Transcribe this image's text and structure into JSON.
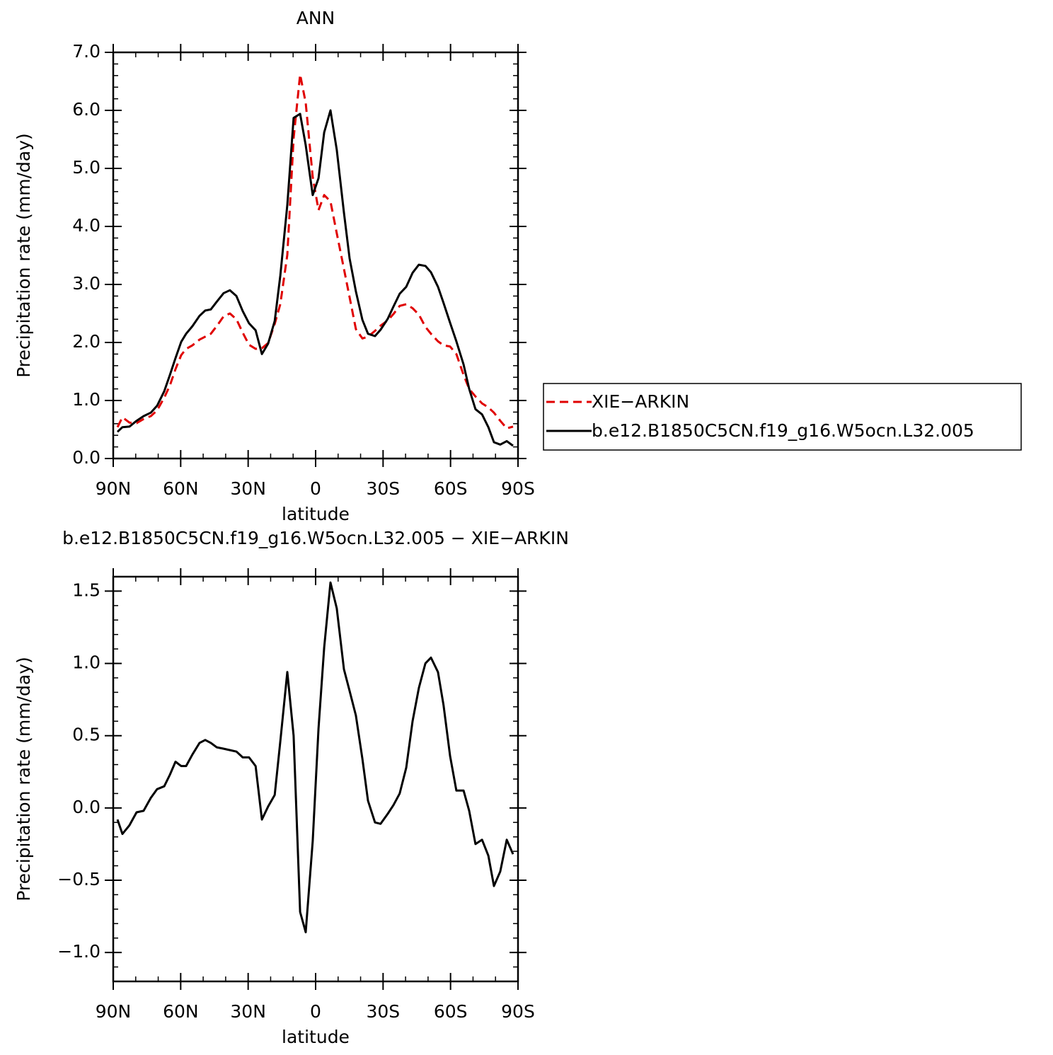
{
  "chart_data": [
    {
      "type": "line",
      "title": "ANN",
      "xlabel": "latitude",
      "ylabel": "Precipitation rate (mm/day)",
      "x": [
        88.1,
        85.9,
        82.8,
        79.6,
        76.5,
        73.3,
        70.5,
        67.3,
        64.8,
        62.3,
        59.8,
        57.6,
        54.8,
        51.6,
        49.1,
        46.6,
        44.0,
        40.9,
        38.1,
        35.2,
        32.4,
        29.6,
        26.7,
        23.9,
        21.1,
        18.2,
        15.7,
        12.6,
        9.8,
        6.9,
        4.4,
        1.3,
        -1.3,
        -3.8,
        -6.6,
        -9.4,
        -12.6,
        -15.1,
        -17.9,
        -20.8,
        -23.3,
        -26.4,
        -28.9,
        -32.1,
        -34.6,
        -37.4,
        -40.3,
        -43.1,
        -45.9,
        -48.8,
        -51.3,
        -54.4,
        -56.9,
        -59.8,
        -62.6,
        -65.8,
        -68.3,
        -71.1,
        -74.0,
        -76.8,
        -79.3,
        -82.1,
        -85.0,
        -87.8
      ],
      "series": [
        {
          "name": "XIE−ARKIN",
          "color": "#e00000",
          "dashed": true,
          "values": [
            0.54,
            0.71,
            0.62,
            0.61,
            0.68,
            0.73,
            0.83,
            1.05,
            1.26,
            1.54,
            1.78,
            1.89,
            1.95,
            2.05,
            2.1,
            2.15,
            2.28,
            2.45,
            2.5,
            2.4,
            2.17,
            1.96,
            1.89,
            1.9,
            1.99,
            2.32,
            2.66,
            3.51,
            5.52,
            6.62,
            6.13,
            4.85,
            4.28,
            4.54,
            4.43,
            3.88,
            3.27,
            2.78,
            2.23,
            2.07,
            2.1,
            2.2,
            2.29,
            2.38,
            2.49,
            2.63,
            2.66,
            2.59,
            2.48,
            2.27,
            2.15,
            2.02,
            1.95,
            1.93,
            1.8,
            1.44,
            1.2,
            1.07,
            0.95,
            0.88,
            0.79,
            0.65,
            0.52,
            0.55
          ]
        },
        {
          "name": "b.e12.B1850C5CN.f19_g16.W5ocn.L32.005",
          "color": "#000000",
          "dashed": false,
          "values": [
            0.46,
            0.54,
            0.55,
            0.65,
            0.73,
            0.79,
            0.91,
            1.16,
            1.44,
            1.73,
            2.01,
            2.15,
            2.28,
            2.46,
            2.55,
            2.57,
            2.7,
            2.85,
            2.9,
            2.8,
            2.54,
            2.33,
            2.21,
            1.8,
            1.98,
            2.37,
            3.15,
            4.37,
            5.87,
            5.94,
            5.4,
            4.54,
            4.83,
            5.62,
            6.0,
            5.32,
            4.24,
            3.45,
            2.88,
            2.39,
            2.15,
            2.11,
            2.22,
            2.41,
            2.62,
            2.84,
            2.96,
            3.2,
            3.34,
            3.32,
            3.21,
            2.96,
            2.68,
            2.34,
            2.02,
            1.62,
            1.2,
            0.85,
            0.76,
            0.54,
            0.28,
            0.24,
            0.3,
            0.22
          ]
        }
      ],
      "xlim": [
        90,
        -90
      ],
      "xticks": [
        {
          "value": 90,
          "label": "90N"
        },
        {
          "value": 60,
          "label": "60N"
        },
        {
          "value": 30,
          "label": "30N"
        },
        0,
        {
          "value": -30,
          "label": "30S"
        },
        {
          "value": -60,
          "label": "60S"
        },
        {
          "value": -90,
          "label": "90S"
        }
      ],
      "ylim": [
        0,
        7
      ],
      "yticks": [
        {
          "value": 0,
          "label": "0.0"
        },
        {
          "value": 1,
          "label": "1.0"
        },
        {
          "value": 2,
          "label": "2.0"
        },
        {
          "value": 3,
          "label": "3.0"
        },
        {
          "value": 4,
          "label": "4.0"
        },
        {
          "value": 5,
          "label": "5.0"
        },
        {
          "value": 6,
          "label": "6.0"
        },
        {
          "value": 7,
          "label": "7.0"
        }
      ]
    },
    {
      "type": "line",
      "title": "b.e12.B1850C5CN.f19_g16.W5ocn.L32.005 − XIE−ARKIN",
      "xlabel": "latitude",
      "ylabel": "Precipitation rate (mm/day)",
      "x": [
        88.1,
        85.9,
        82.8,
        79.6,
        76.5,
        73.3,
        70.5,
        67.3,
        64.8,
        62.3,
        59.8,
        57.6,
        54.8,
        51.6,
        49.1,
        46.6,
        44.0,
        40.9,
        38.1,
        35.2,
        32.4,
        29.6,
        26.7,
        23.9,
        21.1,
        18.2,
        15.7,
        12.6,
        9.8,
        6.9,
        4.4,
        1.3,
        -1.3,
        -3.8,
        -6.6,
        -9.4,
        -12.6,
        -15.1,
        -17.9,
        -20.8,
        -23.3,
        -26.4,
        -28.9,
        -32.1,
        -34.6,
        -37.4,
        -40.3,
        -43.1,
        -45.9,
        -48.8,
        -51.3,
        -54.4,
        -56.9,
        -59.8,
        -62.6,
        -65.8,
        -68.3,
        -71.1,
        -74.0,
        -76.8,
        -79.3,
        -82.1,
        -85.0,
        -87.8
      ],
      "color": "#000000",
      "values": [
        -0.08,
        -0.18,
        -0.12,
        -0.03,
        -0.02,
        0.07,
        0.13,
        0.15,
        0.23,
        0.32,
        0.29,
        0.29,
        0.37,
        0.45,
        0.47,
        0.45,
        0.42,
        0.41,
        0.4,
        0.39,
        0.35,
        0.35,
        0.29,
        -0.08,
        0.01,
        0.09,
        0.46,
        0.94,
        0.5,
        -0.72,
        -0.86,
        -0.23,
        0.55,
        1.11,
        1.56,
        1.38,
        0.96,
        0.81,
        0.64,
        0.34,
        0.05,
        -0.1,
        -0.11,
        -0.04,
        0.02,
        0.1,
        0.28,
        0.6,
        0.83,
        1.0,
        1.04,
        0.94,
        0.71,
        0.36,
        0.12,
        0.12,
        -0.02,
        -0.25,
        -0.22,
        -0.33,
        -0.54,
        -0.44,
        -0.22,
        -0.32
      ],
      "xlim": [
        90,
        -90
      ],
      "xticks": [
        {
          "value": 90,
          "label": "90N"
        },
        {
          "value": 60,
          "label": "60N"
        },
        {
          "value": 30,
          "label": "30N"
        },
        0,
        {
          "value": -30,
          "label": "30S"
        },
        {
          "value": -60,
          "label": "60S"
        },
        {
          "value": -90,
          "label": "90S"
        }
      ],
      "ylim": [
        -1.2,
        1.6
      ],
      "yticks": [
        {
          "value": -1,
          "label": "−1.0"
        },
        {
          "value": -0.5,
          "label": "−0.5"
        },
        {
          "value": 0,
          "label": "0.0"
        },
        {
          "value": 0.5,
          "label": "0.5"
        },
        {
          "value": 1,
          "label": "1.0"
        },
        {
          "value": 1.5,
          "label": "1.5"
        }
      ]
    }
  ]
}
